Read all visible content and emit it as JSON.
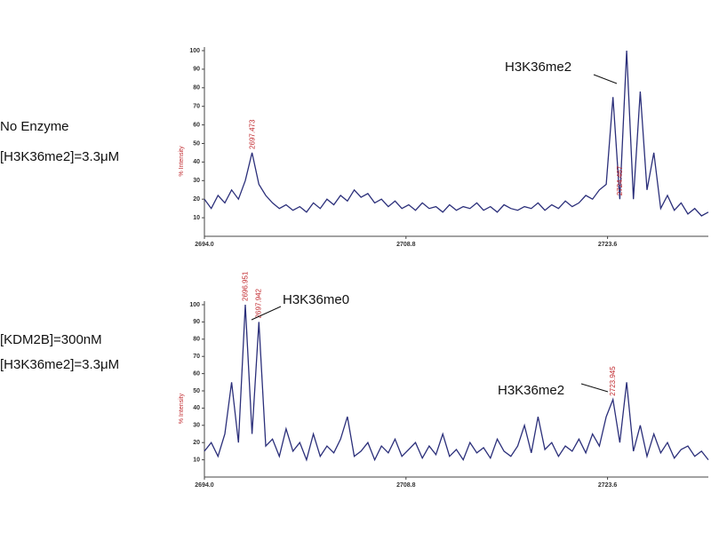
{
  "chart_data": [
    {
      "type": "line",
      "condition": [
        "No Enzyme",
        "[H3K36me2]=3.3μM"
      ],
      "ylabel": "% Intensity",
      "color": "#2b2f7a",
      "annotations": [
        "H3K36me2"
      ],
      "peak_labels": [
        2697.473,
        2724.467
      ],
      "xlim": [
        2694,
        2731
      ],
      "xticks": [
        {
          "value": 2694,
          "label": "2694.0"
        },
        {
          "value": 2708.8,
          "label": "2708.8"
        },
        {
          "value": 2723.6,
          "label": "2723.6"
        }
      ],
      "ylim": [
        0,
        100
      ],
      "yticks": [
        10,
        20,
        30,
        40,
        50,
        60,
        70,
        80,
        90,
        100
      ],
      "x": [
        2694,
        2694.5,
        2695,
        2695.5,
        2696,
        2696.5,
        2697,
        2697.5,
        2698,
        2698.5,
        2699,
        2699.5,
        2700,
        2700.5,
        2701,
        2701.5,
        2702,
        2702.5,
        2703,
        2703.5,
        2704,
        2704.5,
        2705,
        2705.5,
        2706,
        2706.5,
        2707,
        2707.5,
        2708,
        2708.5,
        2709,
        2709.5,
        2710,
        2710.5,
        2711,
        2711.5,
        2712,
        2712.5,
        2713,
        2713.5,
        2714,
        2714.5,
        2715,
        2715.5,
        2716,
        2716.5,
        2717,
        2717.5,
        2718,
        2718.5,
        2719,
        2719.5,
        2720,
        2720.5,
        2721,
        2721.5,
        2722,
        2722.5,
        2723,
        2723.5,
        2724,
        2724.5,
        2725,
        2725.5,
        2726,
        2726.5,
        2727,
        2727.5,
        2728,
        2728.5,
        2729,
        2729.5,
        2730,
        2730.5,
        2731
      ],
      "values": [
        20,
        15,
        22,
        18,
        25,
        20,
        30,
        45,
        28,
        22,
        18,
        15,
        17,
        14,
        16,
        13,
        18,
        15,
        20,
        17,
        22,
        19,
        25,
        21,
        23,
        18,
        20,
        16,
        19,
        15,
        17,
        14,
        18,
        15,
        16,
        13,
        17,
        14,
        16,
        15,
        18,
        14,
        16,
        13,
        17,
        15,
        14,
        16,
        15,
        18,
        14,
        17,
        15,
        19,
        16,
        18,
        22,
        20,
        25,
        28,
        75,
        20,
        100,
        20,
        78,
        25,
        45,
        15,
        22,
        14,
        18,
        12,
        15,
        11,
        13
      ]
    },
    {
      "type": "line",
      "condition": [
        "[KDM2B]=300nM",
        "[H3K36me2]=3.3μM"
      ],
      "ylabel": "% Intensity",
      "color": "#2b2f7a",
      "annotations": [
        "H3K36me0",
        "H3K36me2"
      ],
      "peak_labels": [
        2696.951,
        2697.942,
        2723.945
      ],
      "xlim": [
        2694,
        2731
      ],
      "xticks": [
        {
          "value": 2694,
          "label": "2694.0"
        },
        {
          "value": 2708.8,
          "label": "2708.8"
        },
        {
          "value": 2723.6,
          "label": "2723.6"
        }
      ],
      "ylim": [
        0,
        100
      ],
      "yticks": [
        10,
        20,
        30,
        40,
        50,
        60,
        70,
        80,
        90,
        100
      ],
      "x": [
        2694,
        2694.5,
        2695,
        2695.5,
        2696,
        2696.5,
        2697,
        2697.5,
        2698,
        2698.5,
        2699,
        2699.5,
        2700,
        2700.5,
        2701,
        2701.5,
        2702,
        2702.5,
        2703,
        2703.5,
        2704,
        2704.5,
        2705,
        2705.5,
        2706,
        2706.5,
        2707,
        2707.5,
        2708,
        2708.5,
        2709,
        2709.5,
        2710,
        2710.5,
        2711,
        2711.5,
        2712,
        2712.5,
        2713,
        2713.5,
        2714,
        2714.5,
        2715,
        2715.5,
        2716,
        2716.5,
        2717,
        2717.5,
        2718,
        2718.5,
        2719,
        2719.5,
        2720,
        2720.5,
        2721,
        2721.5,
        2722,
        2722.5,
        2723,
        2723.5,
        2724,
        2724.5,
        2725,
        2725.5,
        2726,
        2726.5,
        2727,
        2727.5,
        2728,
        2728.5,
        2729,
        2729.5,
        2730,
        2730.5,
        2731
      ],
      "values": [
        15,
        20,
        12,
        25,
        55,
        20,
        100,
        25,
        90,
        18,
        22,
        12,
        28,
        15,
        20,
        10,
        25,
        12,
        18,
        14,
        22,
        35,
        12,
        15,
        20,
        10,
        18,
        14,
        22,
        12,
        16,
        20,
        11,
        18,
        13,
        25,
        12,
        16,
        10,
        20,
        14,
        17,
        11,
        22,
        15,
        12,
        18,
        30,
        14,
        35,
        16,
        20,
        12,
        18,
        15,
        22,
        14,
        25,
        18,
        35,
        45,
        20,
        55,
        15,
        30,
        12,
        25,
        14,
        20,
        11,
        16,
        18,
        12,
        15,
        10
      ]
    }
  ]
}
